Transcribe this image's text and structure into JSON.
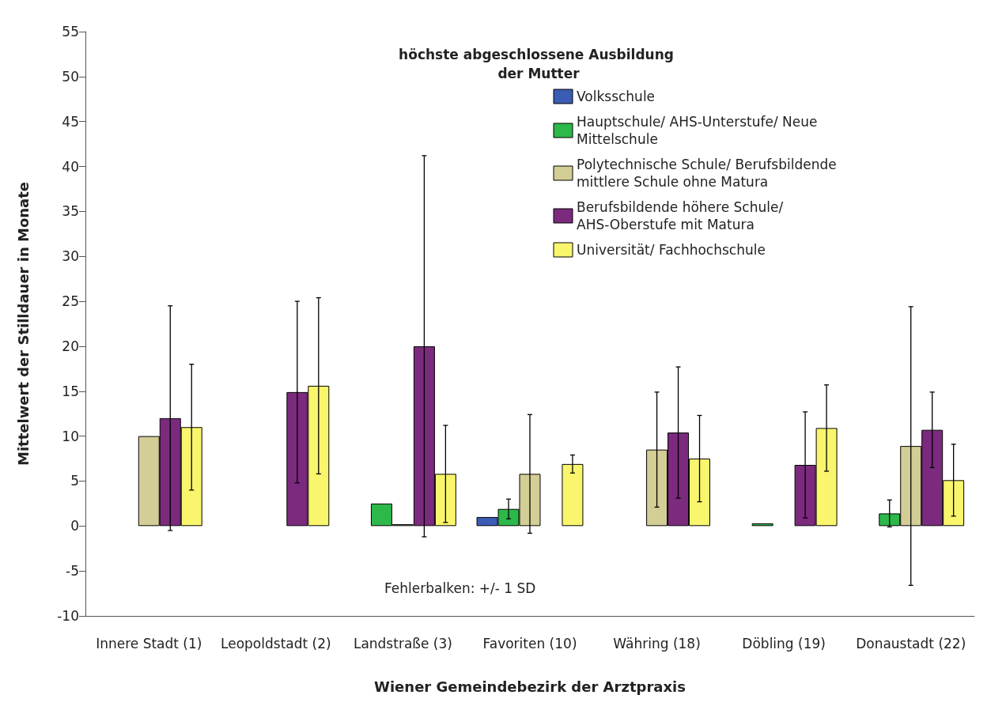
{
  "chart_data": {
    "type": "bar",
    "xlabel": "Wiener Gemeindebezirk der Arztpraxis",
    "ylabel": "Mittelwert der Stilldauer in Monate",
    "legend_title": "höchste abgeschlossene Ausbildung der Mutter",
    "categories": [
      "Innere Stadt (1)",
      "Leopoldstadt (2)",
      "Landstraße (3)",
      "Favoriten (10)",
      "Währing (18)",
      "Döbling (19)",
      "Donaustadt (22)"
    ],
    "series": [
      {
        "name": "Volksschule",
        "color": "#3a5cb4",
        "values": [
          null,
          null,
          null,
          1.0,
          null,
          null,
          null
        ],
        "errors": [
          null,
          null,
          null,
          null,
          null,
          null,
          null
        ]
      },
      {
        "name": "Hauptschule/ AHS-Unterstufe/ Neue Mittelschule",
        "color": "#2db84a",
        "values": [
          null,
          null,
          2.5,
          1.9,
          null,
          0.3,
          1.4
        ],
        "errors": [
          null,
          null,
          null,
          1.1,
          null,
          null,
          1.5
        ]
      },
      {
        "name": "Polytechnische Schule/ Berufsbildende mittlere Schule ohne Matura",
        "color": "#d3cd96",
        "values": [
          10.0,
          null,
          0.2,
          5.8,
          8.5,
          null,
          8.9
        ],
        "errors": [
          null,
          null,
          null,
          6.6,
          6.4,
          null,
          15.5
        ]
      },
      {
        "name": "Berufsbildende höhere Schule/ AHS-Oberstufe mit Matura",
        "color": "#7b2a7e",
        "values": [
          12.0,
          14.9,
          20.0,
          null,
          10.4,
          6.8,
          10.7
        ],
        "errors": [
          12.5,
          10.1,
          21.2,
          null,
          7.3,
          5.9,
          4.2
        ]
      },
      {
        "name": "Universität/ Fachhochschule",
        "color": "#f9f56c",
        "values": [
          11.0,
          15.6,
          5.8,
          6.9,
          7.5,
          10.9,
          5.1
        ],
        "errors": [
          7.0,
          9.8,
          5.4,
          1.0,
          4.8,
          4.8,
          4.0
        ]
      }
    ],
    "ylim": [
      -10,
      55
    ],
    "yticks": [
      -10,
      -5,
      0,
      5,
      10,
      15,
      20,
      25,
      30,
      35,
      40,
      45,
      50,
      55
    ],
    "grid": false,
    "legend": "top right",
    "annotations": [
      "Fehlerbalken: +/- 1 SD"
    ]
  }
}
